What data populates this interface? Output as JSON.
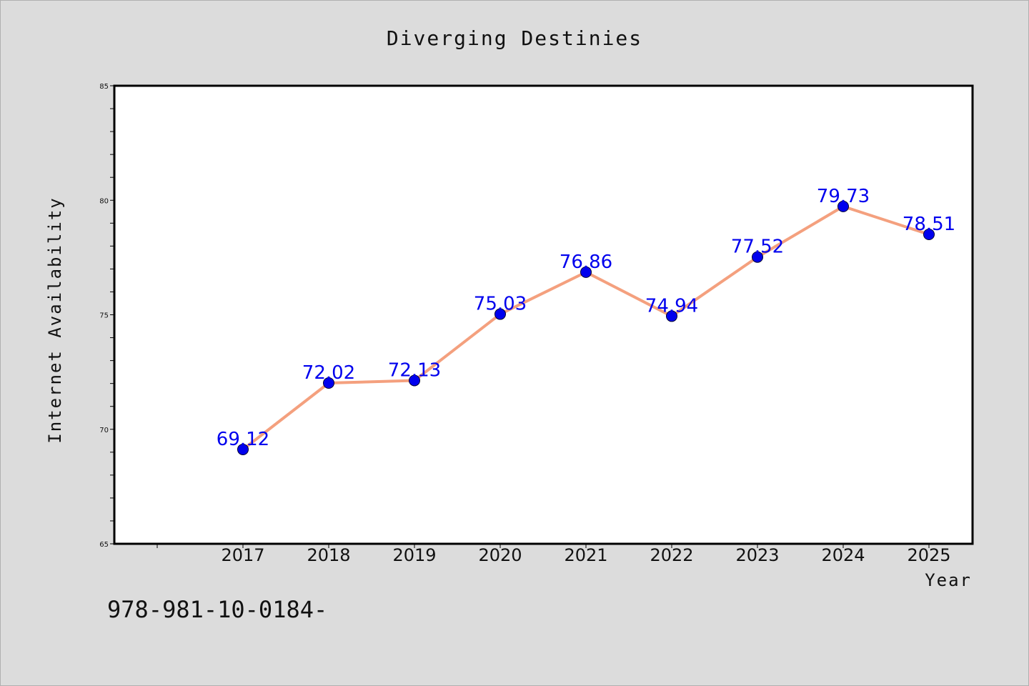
{
  "chart_data": {
    "type": "line",
    "title": "Diverging Destinies",
    "xlabel": "Year",
    "ylabel": "Internet Availability",
    "categories": [
      "2017",
      "2018",
      "2019",
      "2020",
      "2021",
      "2022",
      "2023",
      "2024",
      "2025"
    ],
    "values": [
      69.12,
      72.02,
      72.13,
      75.03,
      76.86,
      74.94,
      77.52,
      79.73,
      78.51
    ],
    "data_labels": [
      "69.12",
      "72.02",
      "72.13",
      "75.03",
      "76.86",
      "74.94",
      "77.52",
      "79.73",
      "78.51"
    ],
    "ylim": [
      65,
      85
    ],
    "yticks": [
      "65",
      "70",
      "75",
      "80",
      "85"
    ],
    "grid": false,
    "line_color": "#f4a07e",
    "marker_color": "#0000ee",
    "label_color": "#0000ee"
  },
  "footer_text": "978-981-10-0184-"
}
